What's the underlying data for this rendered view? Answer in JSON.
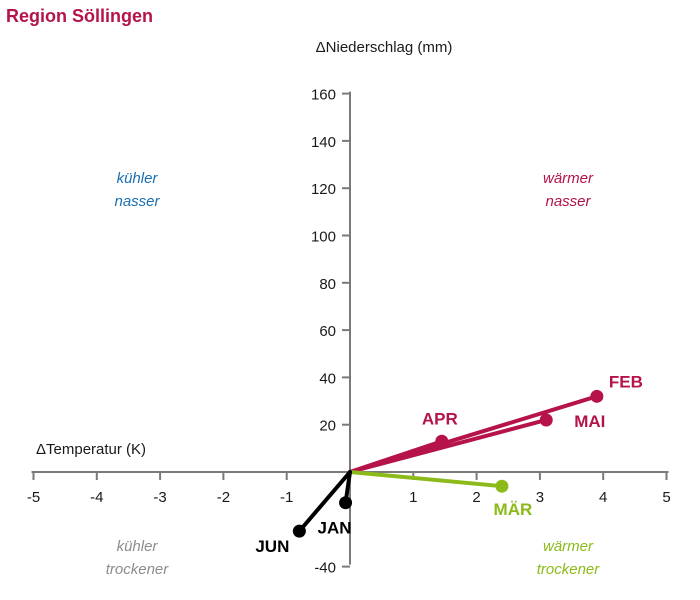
{
  "title": "Region Söllingen",
  "chart_data": {
    "type": "line",
    "xlabel": "ΔTemperatur (K)",
    "ylabel": "ΔNiederschlag (mm)",
    "xlim": [
      -5,
      5
    ],
    "ylim": [
      -40,
      160
    ],
    "xticks": [
      -5,
      -4,
      -3,
      -2,
      -1,
      0,
      1,
      2,
      3,
      4,
      5
    ],
    "xtick_labels": [
      "-5",
      "-4",
      "-3",
      "-2",
      "-1",
      "0",
      "1",
      "2",
      "3",
      "4",
      "5"
    ],
    "yticks": [
      -40,
      20,
      40,
      60,
      80,
      100,
      120,
      140,
      160
    ],
    "ytick_labels": [
      "-40",
      "20",
      "40",
      "60",
      "80",
      "100",
      "120",
      "140",
      "160"
    ],
    "grid": false,
    "quadrants": [
      {
        "lines": [
          "kühler",
          "nasser"
        ],
        "color": "#1a6fb0",
        "position": "top-left"
      },
      {
        "lines": [
          "wärmer",
          "nasser"
        ],
        "color": "#b5134a",
        "position": "top-right"
      },
      {
        "lines": [
          "kühler",
          "trockener"
        ],
        "color": "#8c8c8c",
        "position": "bottom-left"
      },
      {
        "lines": [
          "wärmer",
          "trockener"
        ],
        "color": "#8cba1a",
        "position": "bottom-right"
      }
    ],
    "points": [
      {
        "label": "FEB",
        "x": 3.9,
        "y": 32,
        "color": "#b5134a"
      },
      {
        "label": "MAI",
        "x": 3.1,
        "y": 22,
        "color": "#b5134a"
      },
      {
        "label": "APR",
        "x": 1.45,
        "y": 13,
        "color": "#b5134a"
      },
      {
        "label": "MÄR",
        "x": 2.4,
        "y": -6,
        "color": "#8cba1a"
      },
      {
        "label": "JAN",
        "x": -0.07,
        "y": -13,
        "color": "#000000"
      },
      {
        "label": "JUN",
        "x": -0.8,
        "y": -25,
        "color": "#000000"
      }
    ]
  }
}
